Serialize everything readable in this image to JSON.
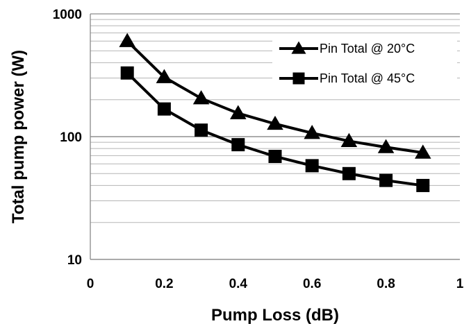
{
  "chart_data": {
    "type": "line",
    "title": "",
    "xlabel": "Pump Loss (dB)",
    "ylabel": "Total pump power (W)",
    "xlim": [
      0,
      1
    ],
    "ylim": [
      10,
      1000
    ],
    "yscale": "log",
    "grid": "horizontal",
    "legend_position": "top-right",
    "x_ticks": [
      "0",
      "0.2",
      "0.4",
      "0.6",
      "0.8",
      "1"
    ],
    "y_ticks": [
      "10",
      "100",
      "1000"
    ],
    "x": [
      0.1,
      0.2,
      0.3,
      0.4,
      0.5,
      0.6,
      0.7,
      0.8,
      0.9
    ],
    "series": [
      {
        "name": "Pin Total @ 20°C",
        "marker": "triangle",
        "color": "#000000",
        "values": [
          600,
          305,
          205,
          155,
          127,
          107,
          92,
          82,
          74
        ]
      },
      {
        "name": "Pin Total @ 45°C",
        "marker": "square",
        "color": "#000000",
        "values": [
          330,
          168,
          113,
          86,
          69,
          58,
          50,
          44,
          40
        ]
      }
    ]
  }
}
